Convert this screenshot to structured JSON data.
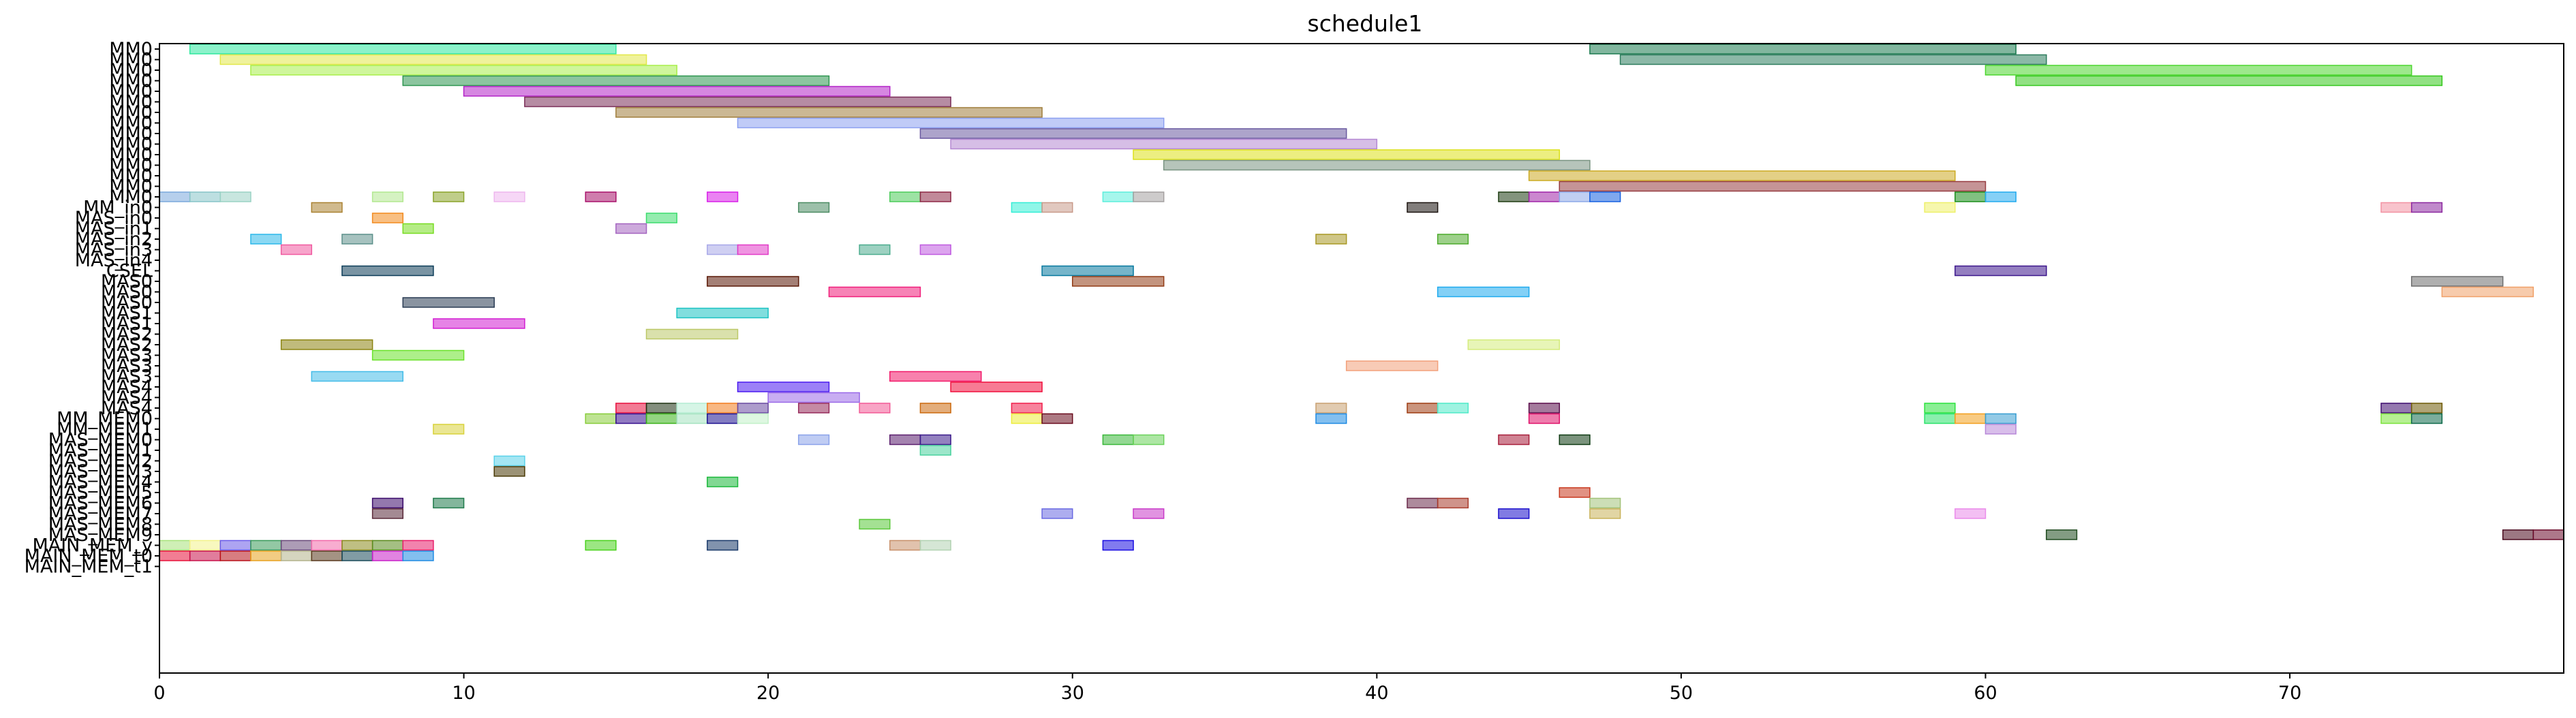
{
  "chart_data": {
    "type": "gantt",
    "title": "schedule1",
    "xlabel": "",
    "ylabel": "",
    "xlim": [
      0,
      79
    ],
    "xticks": [
      0,
      10,
      20,
      30,
      40,
      50,
      60,
      70
    ],
    "grid": false,
    "legend": "none",
    "rows": [
      "MM0",
      "MM0",
      "MM0",
      "MM0",
      "MM0",
      "MM0",
      "MM0",
      "MM0",
      "MM0",
      "MM0",
      "MM0",
      "MM0",
      "MM0",
      "MM0",
      "MM0",
      "MM_in0",
      "MAS_in0",
      "MAS_in1",
      "MAS_in2",
      "MAS_in3",
      "MAS_in4",
      "CSEL",
      "MAS0",
      "MAS0",
      "MAS0",
      "MAS1",
      "MAS1",
      "MAS2",
      "MAS2",
      "MAS3",
      "MAS3",
      "MAS3",
      "MAS4",
      "MAS4",
      "MAS4",
      "MM_MEM0",
      "MM_MEM1",
      "MAS_MEM0",
      "MAS_MEM1",
      "MAS_MEM2",
      "MAS_MEM3",
      "MAS_MEM4",
      "MAS_MEM5",
      "MAS_MEM6",
      "MAS_MEM7",
      "MAS_MEM8",
      "MAS_MEM9",
      "MAIN_MEM_y",
      "MAIN_MEM_t0",
      "MAIN_MEM_t1"
    ],
    "tasks": [
      {
        "row": 0,
        "start": 1,
        "end": 15,
        "color": "#2ee89e"
      },
      {
        "row": 0,
        "start": 47,
        "end": 61,
        "color": "#1a7a4e"
      },
      {
        "row": 1,
        "start": 2,
        "end": 16,
        "color": "#e2e84a"
      },
      {
        "row": 1,
        "start": 48,
        "end": 62,
        "color": "#2e7d5e"
      },
      {
        "row": 2,
        "start": 3,
        "end": 17,
        "color": "#a8ee4a"
      },
      {
        "row": 2,
        "start": 60,
        "end": 74,
        "color": "#4cd62e"
      },
      {
        "row": 3,
        "start": 8,
        "end": 22,
        "color": "#2e9650"
      },
      {
        "row": 3,
        "start": 61,
        "end": 75,
        "color": "#36c81e"
      },
      {
        "row": 4,
        "start": 10,
        "end": 24,
        "color": "#b424c8"
      },
      {
        "row": 5,
        "start": 12,
        "end": 26,
        "color": "#7a2e58"
      },
      {
        "row": 6,
        "start": 15,
        "end": 29,
        "color": "#a07e3c"
      },
      {
        "row": 7,
        "start": 19,
        "end": 33,
        "color": "#8ca0f0"
      },
      {
        "row": 8,
        "start": 25,
        "end": 39,
        "color": "#6a5aa0"
      },
      {
        "row": 9,
        "start": 26,
        "end": 40,
        "color": "#b488d2"
      },
      {
        "row": 10,
        "start": 32,
        "end": 46,
        "color": "#dce01a"
      },
      {
        "row": 11,
        "start": 33,
        "end": 47,
        "color": "#7a9482"
      },
      {
        "row": 12,
        "start": 45,
        "end": 59,
        "color": "#ccaa22"
      },
      {
        "row": 13,
        "start": 46,
        "end": 60,
        "color": "#963c40"
      },
      {
        "row": 14,
        "start": 0,
        "end": 1,
        "color": "#7aa8dc"
      },
      {
        "row": 14,
        "start": 1,
        "end": 2,
        "color": "#86c4c8"
      },
      {
        "row": 14,
        "start": 2,
        "end": 3,
        "color": "#9ad2c4"
      },
      {
        "row": 14,
        "start": 7,
        "end": 8,
        "color": "#b2e890"
      },
      {
        "row": 14,
        "start": 9,
        "end": 10,
        "color": "#8aa42a"
      },
      {
        "row": 14,
        "start": 11,
        "end": 12,
        "color": "#eeb6ee"
      },
      {
        "row": 14,
        "start": 14,
        "end": 15,
        "color": "#a8126a"
      },
      {
        "row": 14,
        "start": 18,
        "end": 19,
        "color": "#d81ee8"
      },
      {
        "row": 14,
        "start": 24,
        "end": 25,
        "color": "#4ccc5a"
      },
      {
        "row": 14,
        "start": 25,
        "end": 26,
        "color": "#8e2846"
      },
      {
        "row": 14,
        "start": 31,
        "end": 32,
        "color": "#5ceedc"
      },
      {
        "row": 14,
        "start": 32,
        "end": 33,
        "color": "#a4a0a0"
      },
      {
        "row": 14,
        "start": 44,
        "end": 45,
        "color": "#1e3c12"
      },
      {
        "row": 14,
        "start": 45,
        "end": 46,
        "color": "#a024a8"
      },
      {
        "row": 14,
        "start": 46,
        "end": 47,
        "color": "#8ca8e8"
      },
      {
        "row": 14,
        "start": 47,
        "end": 48,
        "color": "#1660e0"
      },
      {
        "row": 14,
        "start": 59,
        "end": 60,
        "color": "#1a8e1a"
      },
      {
        "row": 14,
        "start": 60,
        "end": 61,
        "color": "#22aaee"
      },
      {
        "row": 15,
        "start": 5,
        "end": 6,
        "color": "#aa8232"
      },
      {
        "row": 15,
        "start": 21,
        "end": 22,
        "color": "#4c8c64"
      },
      {
        "row": 15,
        "start": 28,
        "end": 29,
        "color": "#34eed6"
      },
      {
        "row": 15,
        "start": 29,
        "end": 30,
        "color": "#c89a8a"
      },
      {
        "row": 15,
        "start": 41,
        "end": 42,
        "color": "#1c1410"
      },
      {
        "row": 15,
        "start": 58,
        "end": 59,
        "color": "#eef06a"
      },
      {
        "row": 15,
        "start": 73,
        "end": 74,
        "color": "#f292a2"
      },
      {
        "row": 15,
        "start": 74,
        "end": 75,
        "color": "#8c2aa0"
      },
      {
        "row": 16,
        "start": 7,
        "end": 8,
        "color": "#f28a1e"
      },
      {
        "row": 16,
        "start": 16,
        "end": 17,
        "color": "#3cdc6e"
      },
      {
        "row": 17,
        "start": 8,
        "end": 9,
        "color": "#78dc22"
      },
      {
        "row": 17,
        "start": 15,
        "end": 16,
        "color": "#a464c0"
      },
      {
        "row": 18,
        "start": 3,
        "end": 4,
        "color": "#2cb8ea"
      },
      {
        "row": 18,
        "start": 6,
        "end": 7,
        "color": "#5c908a"
      },
      {
        "row": 18,
        "start": 38,
        "end": 39,
        "color": "#a89824"
      },
      {
        "row": 18,
        "start": 42,
        "end": 43,
        "color": "#4caa2a"
      },
      {
        "row": 19,
        "start": 4,
        "end": 5,
        "color": "#f05aa0"
      },
      {
        "row": 19,
        "start": 18,
        "end": 19,
        "color": "#a8a8e8"
      },
      {
        "row": 19,
        "start": 19,
        "end": 20,
        "color": "#e23cc8"
      },
      {
        "row": 19,
        "start": 23,
        "end": 24,
        "color": "#4cac8e"
      },
      {
        "row": 19,
        "start": 25,
        "end": 26,
        "color": "#c05ae0"
      },
      {
        "row": 21,
        "start": 6,
        "end": 9,
        "color": "#0c3c58"
      },
      {
        "row": 21,
        "start": 29,
        "end": 32,
        "color": "#06789e"
      },
      {
        "row": 21,
        "start": 59,
        "end": 62,
        "color": "#3c168c"
      },
      {
        "row": 22,
        "start": 18,
        "end": 21,
        "color": "#5a1806"
      },
      {
        "row": 22,
        "start": 30,
        "end": 33,
        "color": "#923c16"
      },
      {
        "row": 22,
        "start": 74,
        "end": 77,
        "color": "#6e6e6e"
      },
      {
        "row": 23,
        "start": 22,
        "end": 25,
        "color": "#f01e7a"
      },
      {
        "row": 23,
        "start": 42,
        "end": 45,
        "color": "#1eaaee"
      },
      {
        "row": 23,
        "start": 75,
        "end": 78,
        "color": "#f0a068"
      },
      {
        "row": 24,
        "start": 8,
        "end": 11,
        "color": "#2a3c54"
      },
      {
        "row": 25,
        "start": 17,
        "end": 20,
        "color": "#1ac2c2"
      },
      {
        "row": 26,
        "start": 9,
        "end": 12,
        "color": "#d21ed2"
      },
      {
        "row": 27,
        "start": 16,
        "end": 19,
        "color": "#bcc868"
      },
      {
        "row": 28,
        "start": 4,
        "end": 7,
        "color": "#8c8410"
      },
      {
        "row": 28,
        "start": 43,
        "end": 46,
        "color": "#d4ec7c"
      },
      {
        "row": 29,
        "start": 7,
        "end": 10,
        "color": "#6ae22a"
      },
      {
        "row": 30,
        "start": 39,
        "end": 42,
        "color": "#f2a07a"
      },
      {
        "row": 31,
        "start": 5,
        "end": 8,
        "color": "#44bce8"
      },
      {
        "row": 31,
        "start": 24,
        "end": 27,
        "color": "#f21a6a"
      },
      {
        "row": 32,
        "start": 19,
        "end": 22,
        "color": "#4a1af0"
      },
      {
        "row": 32,
        "start": 26,
        "end": 29,
        "color": "#f00e3c"
      },
      {
        "row": 33,
        "start": 20,
        "end": 23,
        "color": "#9a6ae8"
      },
      {
        "row": 34,
        "start": 15,
        "end": 16,
        "color": "#e80e3c"
      },
      {
        "row": 34,
        "start": 16,
        "end": 17,
        "color": "#1e3212"
      },
      {
        "row": 34,
        "start": 17,
        "end": 18,
        "color": "#b4ecd2"
      },
      {
        "row": 34,
        "start": 18,
        "end": 19,
        "color": "#f27c1e"
      },
      {
        "row": 34,
        "start": 19,
        "end": 20,
        "color": "#6a4aa2"
      },
      {
        "row": 34,
        "start": 21,
        "end": 22,
        "color": "#962a5a"
      },
      {
        "row": 34,
        "start": 23,
        "end": 24,
        "color": "#f25a96"
      },
      {
        "row": 34,
        "start": 25,
        "end": 26,
        "color": "#cc6a0e"
      },
      {
        "row": 34,
        "start": 28,
        "end": 29,
        "color": "#f01e4a"
      },
      {
        "row": 34,
        "start": 38,
        "end": 39,
        "color": "#c8a070"
      },
      {
        "row": 34,
        "start": 41,
        "end": 42,
        "color": "#9e3c12"
      },
      {
        "row": 34,
        "start": 42,
        "end": 43,
        "color": "#4eeac8"
      },
      {
        "row": 34,
        "start": 45,
        "end": 46,
        "color": "#5a0c4a"
      },
      {
        "row": 34,
        "start": 58,
        "end": 59,
        "color": "#2ae23c"
      },
      {
        "row": 34,
        "start": 73,
        "end": 74,
        "color": "#3c0a6e"
      },
      {
        "row": 34,
        "start": 74,
        "end": 75,
        "color": "#6e5a06"
      },
      {
        "row": 35,
        "start": 14,
        "end": 15,
        "color": "#88cc3a"
      },
      {
        "row": 35,
        "start": 15,
        "end": 16,
        "color": "#360e8e"
      },
      {
        "row": 35,
        "start": 16,
        "end": 17,
        "color": "#3ab21a"
      },
      {
        "row": 35,
        "start": 17,
        "end": 18,
        "color": "#a4e2c0"
      },
      {
        "row": 35,
        "start": 18,
        "end": 19,
        "color": "#1e1290"
      },
      {
        "row": 35,
        "start": 19,
        "end": 20,
        "color": "#c2f0c8"
      },
      {
        "row": 35,
        "start": 28,
        "end": 29,
        "color": "#ecec3a"
      },
      {
        "row": 35,
        "start": 29,
        "end": 30,
        "color": "#6a0c1e"
      },
      {
        "row": 35,
        "start": 38,
        "end": 39,
        "color": "#1e8ae2"
      },
      {
        "row": 35,
        "start": 45,
        "end": 46,
        "color": "#e0126a"
      },
      {
        "row": 35,
        "start": 58,
        "end": 59,
        "color": "#2ae26a"
      },
      {
        "row": 35,
        "start": 59,
        "end": 60,
        "color": "#f2a01e"
      },
      {
        "row": 35,
        "start": 60,
        "end": 61,
        "color": "#3a9ed2"
      },
      {
        "row": 35,
        "start": 73,
        "end": 74,
        "color": "#7ae23a"
      },
      {
        "row": 35,
        "start": 74,
        "end": 75,
        "color": "#0e6a4a"
      },
      {
        "row": 36,
        "start": 9,
        "end": 10,
        "color": "#d8d23a"
      },
      {
        "row": 36,
        "start": 60,
        "end": 61,
        "color": "#b888d8"
      },
      {
        "row": 37,
        "start": 21,
        "end": 22,
        "color": "#8aa2ea"
      },
      {
        "row": 37,
        "start": 24,
        "end": 25,
        "color": "#5a1e6e"
      },
      {
        "row": 37,
        "start": 25,
        "end": 26,
        "color": "#3a1a8a"
      },
      {
        "row": 37,
        "start": 31,
        "end": 32,
        "color": "#3ab83a"
      },
      {
        "row": 37,
        "start": 32,
        "end": 33,
        "color": "#6ad25a"
      },
      {
        "row": 37,
        "start": 44,
        "end": 45,
        "color": "#a81e3a"
      },
      {
        "row": 37,
        "start": 46,
        "end": 47,
        "color": "#0e3a12"
      },
      {
        "row": 38,
        "start": 25,
        "end": 26,
        "color": "#4ad29e"
      },
      {
        "row": 39,
        "start": 11,
        "end": 12,
        "color": "#5ad2ea"
      },
      {
        "row": 40,
        "start": 11,
        "end": 12,
        "color": "#4a3a06"
      },
      {
        "row": 41,
        "start": 18,
        "end": 19,
        "color": "#1ab83a"
      },
      {
        "row": 42,
        "start": 46,
        "end": 47,
        "color": "#c8381e"
      },
      {
        "row": 43,
        "start": 7,
        "end": 8,
        "color": "#3a0a6a"
      },
      {
        "row": 43,
        "start": 9,
        "end": 10,
        "color": "#1e7a4a"
      },
      {
        "row": 43,
        "start": 41,
        "end": 42,
        "color": "#6a2a4a"
      },
      {
        "row": 43,
        "start": 42,
        "end": 43,
        "color": "#a83a2a"
      },
      {
        "row": 43,
        "start": 47,
        "end": 48,
        "color": "#a2c27a"
      },
      {
        "row": 44,
        "start": 7,
        "end": 8,
        "color": "#5a2a3a"
      },
      {
        "row": 44,
        "start": 29,
        "end": 30,
        "color": "#6a6ae2"
      },
      {
        "row": 44,
        "start": 32,
        "end": 33,
        "color": "#c83ac8"
      },
      {
        "row": 44,
        "start": 44,
        "end": 45,
        "color": "#1a0ecc"
      },
      {
        "row": 44,
        "start": 47,
        "end": 48,
        "color": "#c8b25a"
      },
      {
        "row": 44,
        "start": 59,
        "end": 60,
        "color": "#ea8aea"
      },
      {
        "row": 45,
        "start": 23,
        "end": 24,
        "color": "#5ac83a"
      },
      {
        "row": 46,
        "start": 62,
        "end": 63,
        "color": "#1e4a1e"
      },
      {
        "row": 46,
        "start": 77,
        "end": 78,
        "color": "#4a0a1e"
      },
      {
        "row": 46,
        "start": 78,
        "end": 79,
        "color": "#6a0a2a"
      },
      {
        "row": 47,
        "start": 0,
        "end": 1,
        "color": "#a8e27a"
      },
      {
        "row": 47,
        "start": 1,
        "end": 2,
        "color": "#f2f28a"
      },
      {
        "row": 47,
        "start": 2,
        "end": 3,
        "color": "#6a5ae8"
      },
      {
        "row": 47,
        "start": 3,
        "end": 4,
        "color": "#3a9a5a"
      },
      {
        "row": 47,
        "start": 4,
        "end": 5,
        "color": "#6a4a7a"
      },
      {
        "row": 47,
        "start": 5,
        "end": 6,
        "color": "#f26aaa"
      },
      {
        "row": 47,
        "start": 6,
        "end": 7,
        "color": "#8a8a1e"
      },
      {
        "row": 47,
        "start": 7,
        "end": 8,
        "color": "#5a8a1e"
      },
      {
        "row": 47,
        "start": 8,
        "end": 9,
        "color": "#e81e6a"
      },
      {
        "row": 47,
        "start": 14,
        "end": 15,
        "color": "#4ad21e"
      },
      {
        "row": 47,
        "start": 18,
        "end": 19,
        "color": "#1a3a6a"
      },
      {
        "row": 47,
        "start": 24,
        "end": 25,
        "color": "#c8906a"
      },
      {
        "row": 47,
        "start": 25,
        "end": 26,
        "color": "#b2d2b2"
      },
      {
        "row": 47,
        "start": 31,
        "end": 32,
        "color": "#1a0ee2"
      },
      {
        "row": 48,
        "start": 0,
        "end": 1,
        "color": "#e8123a"
      },
      {
        "row": 48,
        "start": 1,
        "end": 2,
        "color": "#c8124a"
      },
      {
        "row": 48,
        "start": 2,
        "end": 3,
        "color": "#b8121a"
      },
      {
        "row": 48,
        "start": 3,
        "end": 4,
        "color": "#e8a21e"
      },
      {
        "row": 48,
        "start": 4,
        "end": 5,
        "color": "#b2b28a"
      },
      {
        "row": 48,
        "start": 5,
        "end": 6,
        "color": "#5a3a1e"
      },
      {
        "row": 48,
        "start": 6,
        "end": 7,
        "color": "#1a4a5a"
      },
      {
        "row": 48,
        "start": 7,
        "end": 8,
        "color": "#c81ec8"
      },
      {
        "row": 48,
        "start": 8,
        "end": 9,
        "color": "#1e8ae2"
      }
    ]
  }
}
